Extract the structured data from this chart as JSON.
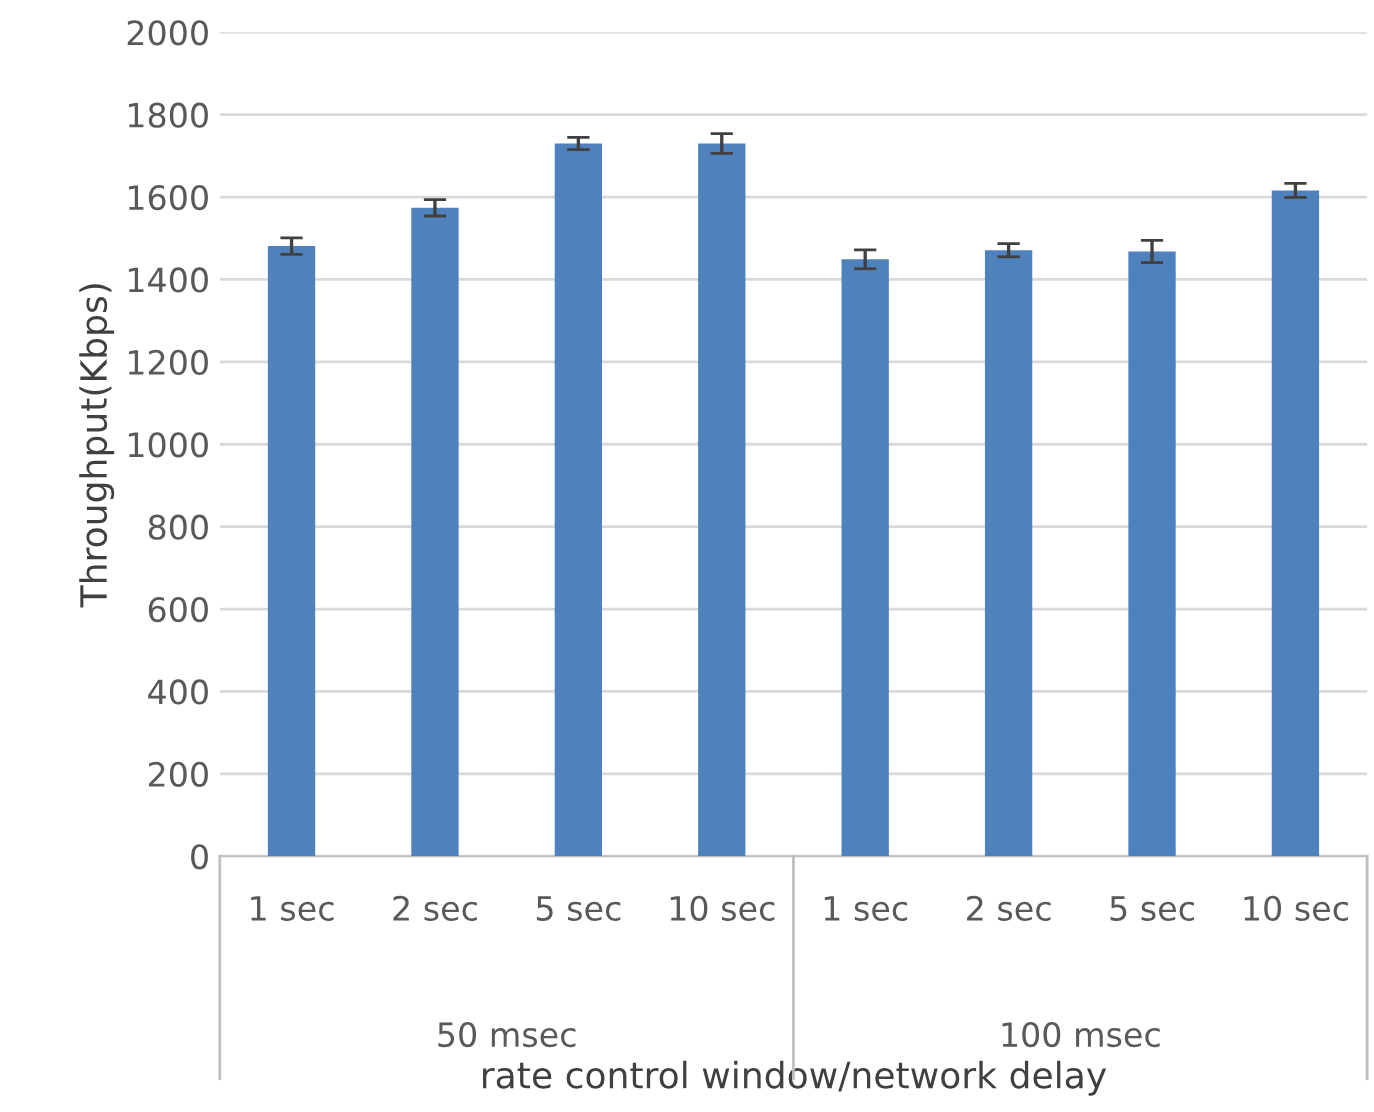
{
  "chart_data": {
    "type": "bar",
    "categories": [
      "1 sec",
      "2 sec",
      "5 sec",
      "10 sec",
      "1 sec",
      "2 sec",
      "5 sec",
      "10 sec"
    ],
    "values": [
      1481,
      1574,
      1730,
      1730,
      1449,
      1471,
      1468,
      1616
    ],
    "errors": [
      20,
      20,
      15,
      24,
      23,
      16,
      27,
      17
    ],
    "color": "#4f81bd",
    "xlabel": "rate control window/network delay",
    "ylabel": "Throughput(Kbps)",
    "annotations": [
      "50 msec",
      "100 msec"
    ],
    "ylim": [
      0,
      2000
    ],
    "yticks": [
      0,
      200,
      400,
      600,
      800,
      1000,
      1200,
      1400,
      1600,
      1800,
      2000
    ],
    "grid": "y",
    "legend": false
  }
}
